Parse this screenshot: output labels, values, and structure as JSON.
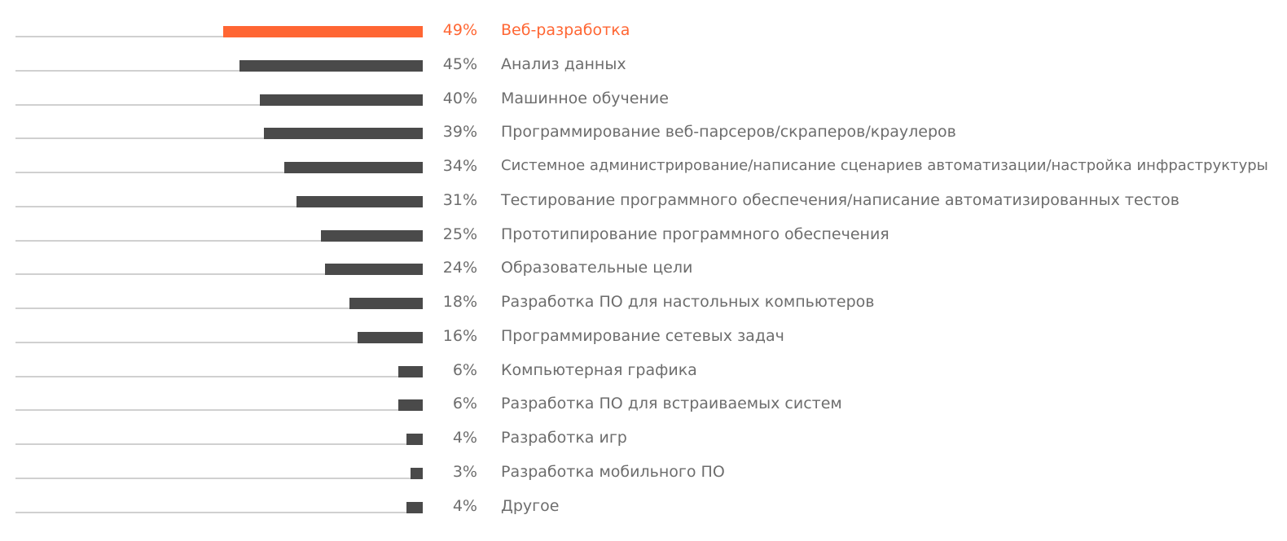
{
  "chart_data": {
    "type": "bar",
    "orientation": "horizontal",
    "title": "",
    "xlabel": "",
    "ylabel": "",
    "xlim": [
      0,
      49
    ],
    "value_suffix": "%",
    "highlight_index": 0,
    "categories": [
      "Веб-разработка",
      "Анализ данных",
      "Машинное обучение",
      "Программирование веб-парсеров/скраперов/краулеров",
      "Системное администрирование/написание сценариев автоматизации/настройка инфраструктуры",
      "Тестирование программного обеспечения/написание автоматизированных тестов",
      "Прототипирование программного обеспечения",
      "Образовательные цели",
      "Разработка ПО для настольных компьютеров",
      "Программирование сетевых задач",
      "Компьютерная графика",
      "Разработка ПО для встраиваемых систем",
      "Разработка игр",
      "Разработка мобильного ПО",
      "Другое"
    ],
    "values": [
      49,
      45,
      40,
      39,
      34,
      31,
      25,
      24,
      18,
      16,
      6,
      6,
      4,
      3,
      4
    ],
    "value_labels": [
      "49%",
      "45%",
      "40%",
      "39%",
      "34%",
      "31%",
      "25%",
      "24%",
      "18%",
      "16%",
      "6%",
      "6%",
      "4%",
      "3%",
      "4%"
    ]
  },
  "colors": {
    "highlight": "#ff6633",
    "bar": "#4a4a4a",
    "text": "#6d6d6d",
    "baseline": "#d0d0d0"
  }
}
